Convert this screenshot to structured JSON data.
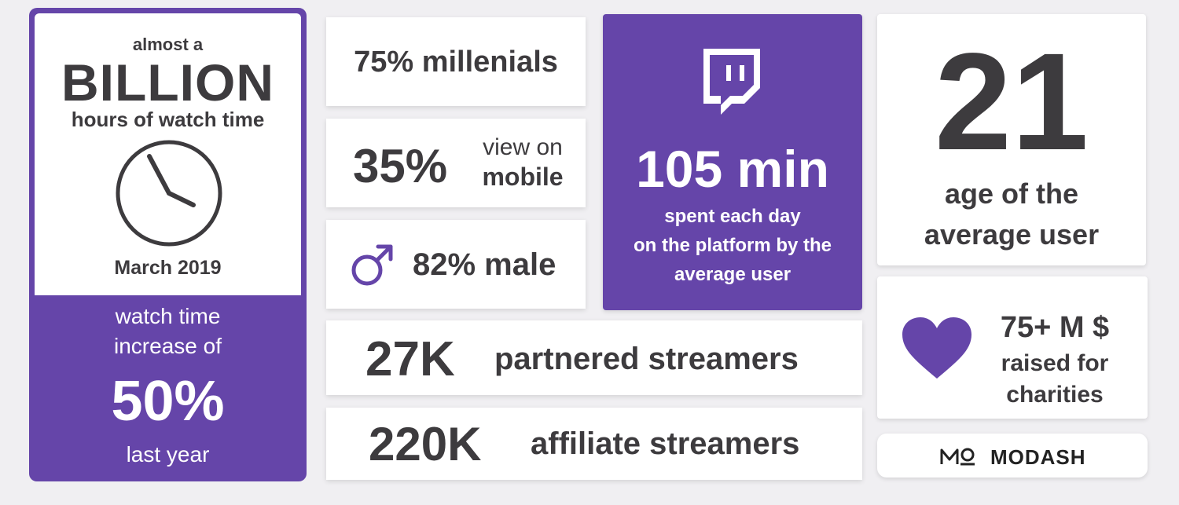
{
  "left_card": {
    "line1": "almost a",
    "line2": "BILLION",
    "line3": "hours of watch time",
    "date": "March 2019",
    "increase_line1": "watch time",
    "increase_line2": "increase of",
    "increase_value": "50%",
    "increase_line3": "last year"
  },
  "millenials": {
    "text": "75% millenials"
  },
  "mobile": {
    "value": "35%",
    "line1": "view on",
    "line2": "mobile"
  },
  "male": {
    "text": "82% male"
  },
  "partnered": {
    "value": "27K",
    "label": "partnered streamers"
  },
  "affiliate": {
    "value": "220K",
    "label": "affiliate streamers"
  },
  "minutes": {
    "value": "105 min",
    "line1": "spent each day",
    "line2": "on the platform by the",
    "line3": "average user"
  },
  "age": {
    "value": "21",
    "line1": "age of the",
    "line2": "average user"
  },
  "charity": {
    "line1": "75+ M $",
    "line2": "raised for",
    "line3": "charities"
  },
  "brand": {
    "name": "MODASH"
  },
  "colors": {
    "purple": "#6545a9",
    "text": "#3d3b3e"
  }
}
